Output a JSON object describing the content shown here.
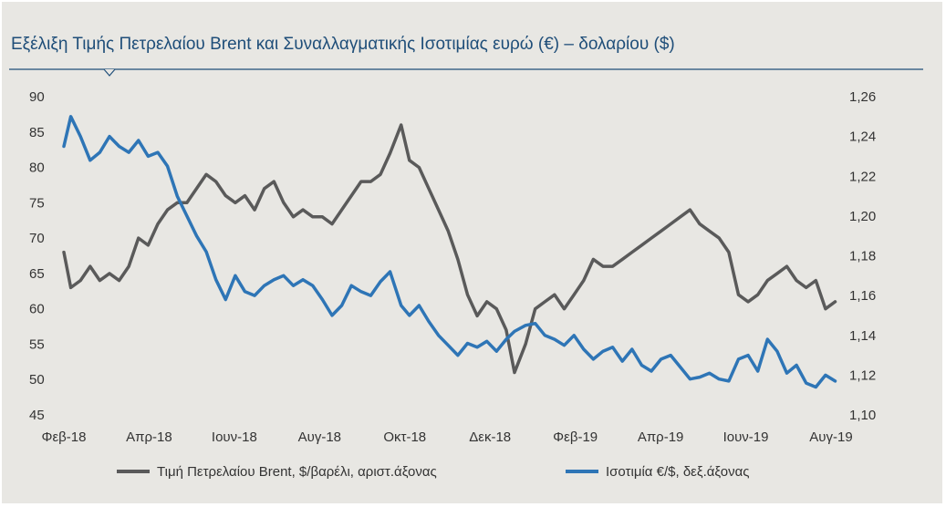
{
  "title": "Εξέλιξη Τιμής Πετρελαίου Brent και Συναλλαγματικής Ισοτιμίας ευρώ (€) – δολαρίου ($)",
  "colors": {
    "brent": "#5a5a5a",
    "fx": "#2e75b6",
    "title": "#1f4e79",
    "background": "#e8e7e3"
  },
  "chart_data": {
    "type": "line",
    "title": "Εξέλιξη Τιμής Πετρελαίου Brent και Συναλλαγματικής Ισοτιμίας ευρώ (€) – δολαρίου ($)",
    "x_ticks": [
      "Φεβ-18",
      "Απρ-18",
      "Ιουν-18",
      "Αυγ-18",
      "Οκτ-18",
      "Δεκ-18",
      "Φεβ-19",
      "Απρ-19",
      "Ιουν-19",
      "Αυγ-19"
    ],
    "y_left": {
      "ylim": [
        45,
        90
      ],
      "ticks": [
        "45",
        "50",
        "55",
        "60",
        "65",
        "70",
        "75",
        "80",
        "85",
        "90"
      ]
    },
    "y_right": {
      "ylim": [
        1.1,
        1.26
      ],
      "ticks": [
        "1,10",
        "1,12",
        "1,14",
        "1,16",
        "1,18",
        "1,20",
        "1,22",
        "1,24",
        "1,26"
      ]
    },
    "grid": false,
    "legend_position": "bottom",
    "series": [
      {
        "name": "Τιμή Πετρελαίου Brent, $/βαρέλι, αριστ.άξονας",
        "axis": "left",
        "x": [
          "2018-02-01",
          "2018-02-06",
          "2018-02-13",
          "2018-02-20",
          "2018-02-27",
          "2018-03-06",
          "2018-03-13",
          "2018-03-20",
          "2018-03-27",
          "2018-04-03",
          "2018-04-10",
          "2018-04-17",
          "2018-04-24",
          "2018-05-01",
          "2018-05-08",
          "2018-05-15",
          "2018-05-22",
          "2018-05-29",
          "2018-06-05",
          "2018-06-12",
          "2018-06-19",
          "2018-06-26",
          "2018-07-03",
          "2018-07-10",
          "2018-07-17",
          "2018-07-24",
          "2018-07-31",
          "2018-08-07",
          "2018-08-14",
          "2018-08-21",
          "2018-08-28",
          "2018-09-04",
          "2018-09-11",
          "2018-09-18",
          "2018-09-25",
          "2018-10-03",
          "2018-10-09",
          "2018-10-16",
          "2018-10-23",
          "2018-10-30",
          "2018-11-06",
          "2018-11-13",
          "2018-11-20",
          "2018-11-27",
          "2018-12-04",
          "2018-12-11",
          "2018-12-18",
          "2018-12-24",
          "2019-01-01",
          "2019-01-08",
          "2019-01-15",
          "2019-01-22",
          "2019-01-29",
          "2019-02-05",
          "2019-02-12",
          "2019-02-19",
          "2019-02-26",
          "2019-03-05",
          "2019-03-12",
          "2019-03-19",
          "2019-03-26",
          "2019-04-02",
          "2019-04-09",
          "2019-04-16",
          "2019-04-23",
          "2019-04-30",
          "2019-05-07",
          "2019-05-14",
          "2019-05-21",
          "2019-05-28",
          "2019-06-04",
          "2019-06-11",
          "2019-06-18",
          "2019-06-25",
          "2019-07-02",
          "2019-07-09",
          "2019-07-16",
          "2019-07-23",
          "2019-07-30",
          "2019-08-06",
          "2019-08-13"
        ],
        "y": [
          68,
          63,
          64,
          66,
          64,
          65,
          64,
          66,
          70,
          69,
          72,
          74,
          75,
          75,
          77,
          79,
          78,
          76,
          75,
          76,
          74,
          77,
          78,
          75,
          73,
          74,
          73,
          73,
          72,
          74,
          76,
          78,
          78,
          79,
          82,
          86,
          81,
          80,
          77,
          74,
          71,
          67,
          62,
          59,
          61,
          60,
          57,
          51,
          55,
          60,
          61,
          62,
          60,
          62,
          64,
          67,
          66,
          66,
          67,
          68,
          69,
          70,
          71,
          72,
          73,
          74,
          72,
          71,
          70,
          68,
          62,
          61,
          62,
          64,
          65,
          66,
          64,
          63,
          64,
          60,
          61
        ],
        "color": "#5a5a5a"
      },
      {
        "name": "Ισοτιμία €/$, δεξ.άξονας",
        "axis": "right",
        "x": [
          "2018-02-01",
          "2018-02-06",
          "2018-02-13",
          "2018-02-20",
          "2018-02-27",
          "2018-03-06",
          "2018-03-13",
          "2018-03-20",
          "2018-03-27",
          "2018-04-03",
          "2018-04-10",
          "2018-04-17",
          "2018-04-24",
          "2018-05-01",
          "2018-05-08",
          "2018-05-15",
          "2018-05-22",
          "2018-05-29",
          "2018-06-05",
          "2018-06-12",
          "2018-06-19",
          "2018-06-26",
          "2018-07-03",
          "2018-07-10",
          "2018-07-17",
          "2018-07-24",
          "2018-07-31",
          "2018-08-07",
          "2018-08-14",
          "2018-08-21",
          "2018-08-28",
          "2018-09-04",
          "2018-09-11",
          "2018-09-18",
          "2018-09-25",
          "2018-10-03",
          "2018-10-09",
          "2018-10-16",
          "2018-10-23",
          "2018-10-30",
          "2018-11-06",
          "2018-11-13",
          "2018-11-20",
          "2018-11-27",
          "2018-12-04",
          "2018-12-11",
          "2018-12-18",
          "2018-12-24",
          "2019-01-01",
          "2019-01-08",
          "2019-01-15",
          "2019-01-22",
          "2019-01-29",
          "2019-02-05",
          "2019-02-12",
          "2019-02-19",
          "2019-02-26",
          "2019-03-05",
          "2019-03-12",
          "2019-03-19",
          "2019-03-26",
          "2019-04-02",
          "2019-04-09",
          "2019-04-16",
          "2019-04-23",
          "2019-04-30",
          "2019-05-07",
          "2019-05-14",
          "2019-05-21",
          "2019-05-28",
          "2019-06-04",
          "2019-06-11",
          "2019-06-18",
          "2019-06-25",
          "2019-07-02",
          "2019-07-09",
          "2019-07-16",
          "2019-07-23",
          "2019-07-30",
          "2019-08-06",
          "2019-08-13"
        ],
        "y": [
          1.235,
          1.25,
          1.24,
          1.228,
          1.232,
          1.24,
          1.235,
          1.232,
          1.238,
          1.23,
          1.232,
          1.225,
          1.21,
          1.2,
          1.19,
          1.182,
          1.168,
          1.158,
          1.17,
          1.162,
          1.16,
          1.165,
          1.168,
          1.17,
          1.165,
          1.168,
          1.165,
          1.158,
          1.15,
          1.155,
          1.165,
          1.162,
          1.16,
          1.167,
          1.172,
          1.155,
          1.15,
          1.155,
          1.147,
          1.14,
          1.135,
          1.13,
          1.136,
          1.134,
          1.137,
          1.132,
          1.138,
          1.142,
          1.145,
          1.146,
          1.14,
          1.138,
          1.135,
          1.14,
          1.133,
          1.128,
          1.132,
          1.134,
          1.127,
          1.133,
          1.125,
          1.122,
          1.128,
          1.13,
          1.124,
          1.118,
          1.119,
          1.121,
          1.118,
          1.117,
          1.128,
          1.13,
          1.122,
          1.138,
          1.132,
          1.121,
          1.125,
          1.116,
          1.114,
          1.12,
          1.117
        ],
        "color": "#2e75b6"
      }
    ]
  }
}
